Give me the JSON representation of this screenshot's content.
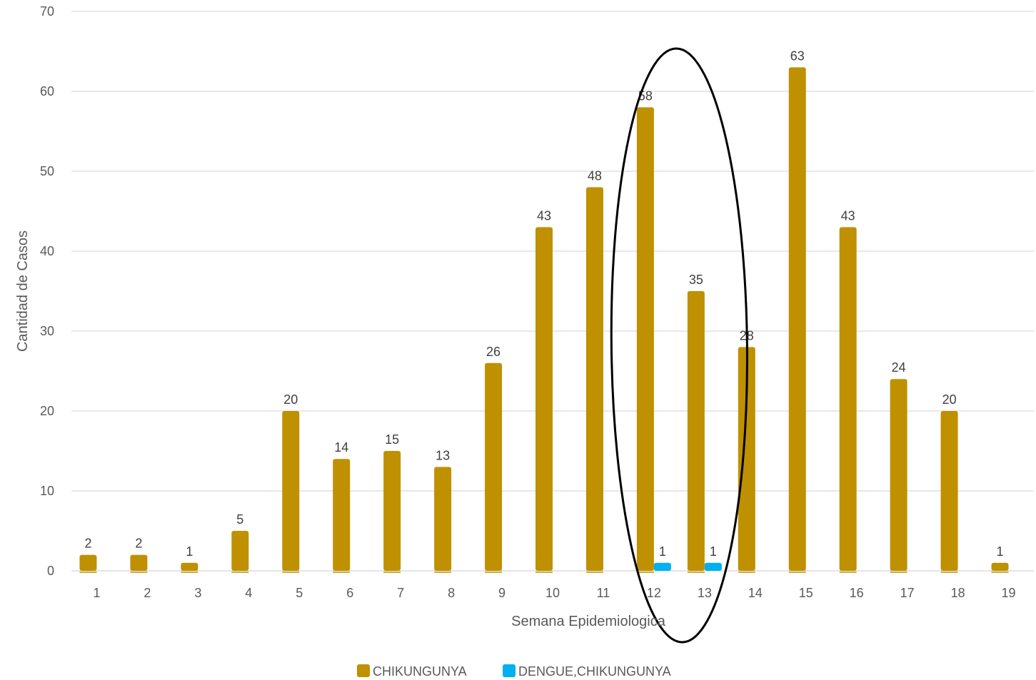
{
  "chart_data": {
    "type": "bar",
    "xlabel": "Semana Epidemiologica",
    "ylabel": "Cantidad de Casos",
    "ylim": [
      0,
      70
    ],
    "yticks": [
      0,
      10,
      20,
      30,
      40,
      50,
      60,
      70
    ],
    "grid": true,
    "legend_position": "bottom",
    "categories": [
      "1",
      "2",
      "3",
      "4",
      "5",
      "6",
      "7",
      "8",
      "9",
      "10",
      "11",
      "12",
      "13",
      "14",
      "15",
      "16",
      "17",
      "18",
      "19"
    ],
    "series": [
      {
        "name": "CHIKUNGUNYA",
        "color": "#bf9000",
        "values": [
          2,
          2,
          1,
          5,
          20,
          14,
          15,
          13,
          26,
          43,
          48,
          58,
          35,
          28,
          63,
          43,
          24,
          20,
          1
        ]
      },
      {
        "name": "DENGUE,CHIKUNGUNYA",
        "color": "#00b0f0",
        "values": [
          null,
          null,
          null,
          null,
          null,
          null,
          null,
          null,
          null,
          null,
          null,
          1,
          1,
          null,
          null,
          null,
          null,
          null,
          null
        ]
      }
    ],
    "annotation": {
      "type": "ellipse",
      "around_categories": [
        "12",
        "13"
      ],
      "color": "#000000"
    }
  }
}
